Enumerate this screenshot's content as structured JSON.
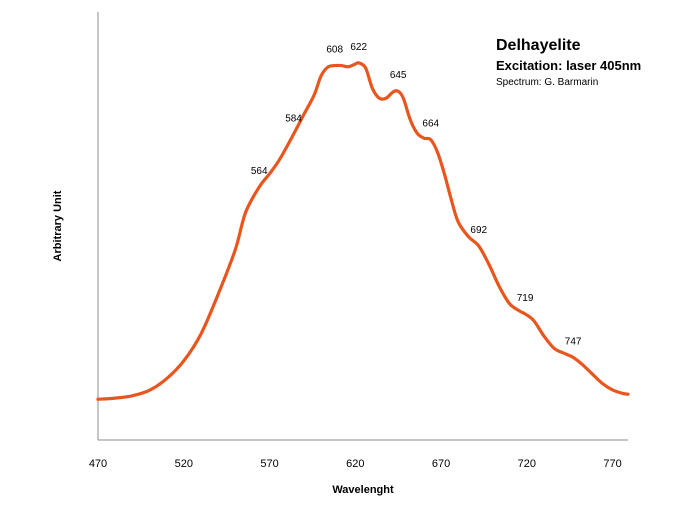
{
  "chart_data": {
    "type": "line",
    "title": "Delhayelite",
    "subtitle": "Excitation: laser 405nm",
    "credit": "Spectrum: G. Barmarin",
    "xlabel": "Wavelenght",
    "ylabel": "Arbitrary Unit",
    "xlim": [
      470,
      779
    ],
    "ylim": [
      0,
      100
    ],
    "xticks": [
      470,
      520,
      570,
      620,
      670,
      720,
      770
    ],
    "grid": false,
    "legend": "none",
    "color": "#E8561E",
    "series": [
      {
        "x": [
          470,
          480,
          490,
          500,
          510,
          520,
          530,
          540,
          550,
          556,
          564,
          570,
          576,
          584,
          590,
          596,
          600,
          604,
          608,
          612,
          616,
          620,
          622,
          626,
          630,
          634,
          638,
          642,
          645,
          648,
          652,
          656,
          660,
          664,
          668,
          672,
          676,
          680,
          686,
          692,
          698,
          704,
          710,
          716,
          719,
          724,
          730,
          736,
          742,
          747,
          752,
          758,
          764,
          770,
          776,
          779
        ],
        "y": [
          10.5,
          10.8,
          11.4,
          12.8,
          15.8,
          20.4,
          27.3,
          37.5,
          49.0,
          58.6,
          65.2,
          68.6,
          72.4,
          78.8,
          83.9,
          88.9,
          93.8,
          96.1,
          96.5,
          96.5,
          96.2,
          96.9,
          97.2,
          95.9,
          90.6,
          88.1,
          88.1,
          89.7,
          89.9,
          88.1,
          82.6,
          79.1,
          77.8,
          77.4,
          74.1,
          68.5,
          61.9,
          56.2,
          52.4,
          50.0,
          45.2,
          39.5,
          35.1,
          33.2,
          32.5,
          30.8,
          26.8,
          23.6,
          22.3,
          21.3,
          19.6,
          17.1,
          14.6,
          12.9,
          12.0,
          11.8
        ]
      }
    ],
    "peak_labels": [
      {
        "x": 564,
        "y": 65.2,
        "text": "564"
      },
      {
        "x": 584,
        "y": 78.8,
        "text": "584"
      },
      {
        "x": 608,
        "y": 96.5,
        "text": "608"
      },
      {
        "x": 622,
        "y": 97.2,
        "text": "622"
      },
      {
        "x": 645,
        "y": 89.9,
        "text": "645"
      },
      {
        "x": 664,
        "y": 77.4,
        "text": "664"
      },
      {
        "x": 692,
        "y": 50.0,
        "text": "692"
      },
      {
        "x": 719,
        "y": 32.5,
        "text": "719"
      },
      {
        "x": 747,
        "y": 21.3,
        "text": "747"
      }
    ]
  }
}
